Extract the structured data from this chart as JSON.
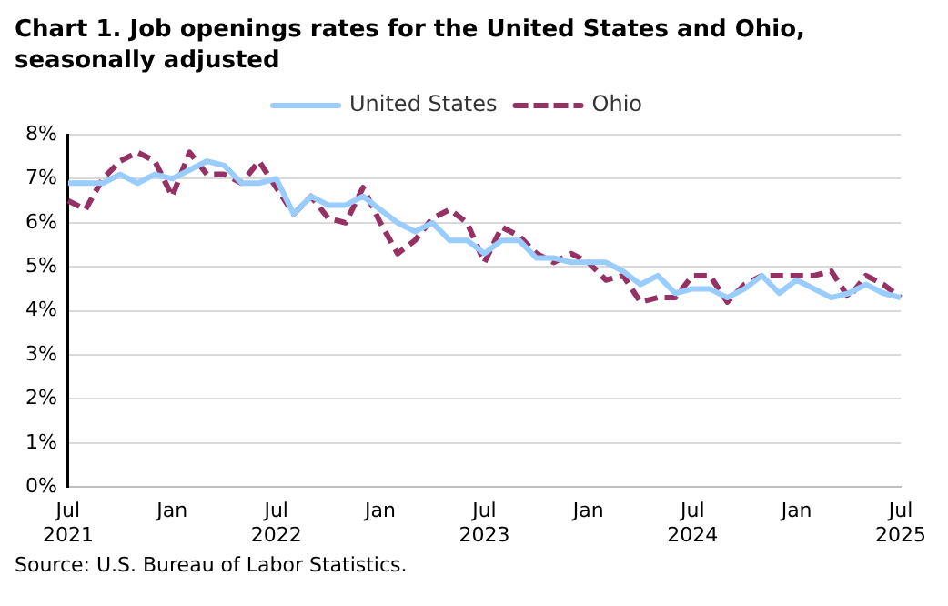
{
  "chart_data": {
    "type": "line",
    "title": "Chart 1. Job openings rates for the United States and Ohio, seasonally adjusted",
    "categories": [
      "Jul 2021",
      null,
      null,
      null,
      null,
      null,
      "Jan",
      null,
      null,
      null,
      null,
      null,
      "Jul 2022",
      null,
      null,
      null,
      null,
      null,
      "Jan",
      null,
      null,
      null,
      null,
      null,
      "Jul 2023",
      null,
      null,
      null,
      null,
      null,
      "Jan",
      null,
      null,
      null,
      null,
      null,
      "Jul 2024",
      null,
      null,
      null,
      null,
      null,
      "Jan",
      null,
      null,
      null,
      null,
      null,
      "Jul 2025"
    ],
    "series": [
      {
        "name": "United States",
        "color": "#99ccff",
        "line_style": "solid",
        "values": [
          6.9,
          6.9,
          6.9,
          7.1,
          6.9,
          7.1,
          7.0,
          7.2,
          7.4,
          7.3,
          6.9,
          6.9,
          7.0,
          6.2,
          6.6,
          6.4,
          6.4,
          6.6,
          6.3,
          6.0,
          5.8,
          6.0,
          5.6,
          5.6,
          5.3,
          5.6,
          5.6,
          5.2,
          5.2,
          5.1,
          5.1,
          5.1,
          4.9,
          4.6,
          4.8,
          4.4,
          4.5,
          4.5,
          4.3,
          4.5,
          4.8,
          4.4,
          4.7,
          4.5,
          4.3,
          4.4,
          4.6,
          4.4,
          4.3
        ]
      },
      {
        "name": "Ohio",
        "color": "#953163",
        "line_style": "dashed",
        "values": [
          6.5,
          6.3,
          7.0,
          7.4,
          7.6,
          7.4,
          6.6,
          7.6,
          7.1,
          7.1,
          6.9,
          7.4,
          6.8,
          6.2,
          6.6,
          6.1,
          6.0,
          6.8,
          6.0,
          5.3,
          5.6,
          6.1,
          6.3,
          6.0,
          5.1,
          5.9,
          5.7,
          5.3,
          5.1,
          5.3,
          5.1,
          4.7,
          4.8,
          4.2,
          4.3,
          4.3,
          4.8,
          4.8,
          4.2,
          4.6,
          4.8,
          4.8,
          4.8,
          4.8,
          4.9,
          4.3,
          4.8,
          4.6,
          4.3
        ]
      }
    ],
    "ylim": [
      0,
      8
    ],
    "yticks": [
      {
        "value": 0,
        "label": "0%"
      },
      {
        "value": 1,
        "label": "1%"
      },
      {
        "value": 2,
        "label": "2%"
      },
      {
        "value": 3,
        "label": "3%"
      },
      {
        "value": 4,
        "label": "4%"
      },
      {
        "value": 5,
        "label": "5%"
      },
      {
        "value": 6,
        "label": "6%"
      },
      {
        "value": 7,
        "label": "7%"
      },
      {
        "value": 8,
        "label": "8%"
      }
    ],
    "grid": "y",
    "legend": "top",
    "marker": "none",
    "annotations": [
      "Source: U.S. Bureau of Labor Statistics."
    ]
  }
}
